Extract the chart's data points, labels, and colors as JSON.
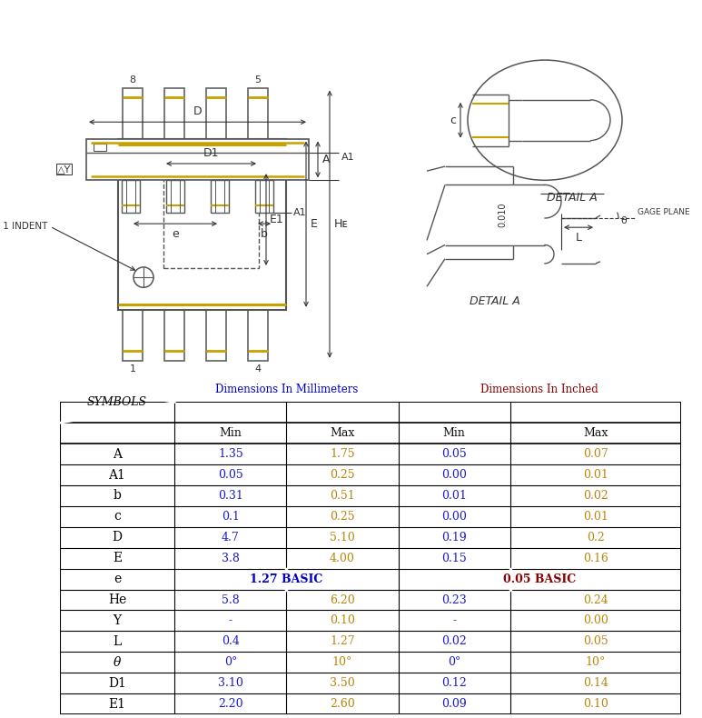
{
  "table": {
    "symbols": [
      "A",
      "A1",
      "b",
      "c",
      "D",
      "E",
      "e",
      "He",
      "Y",
      "L",
      "θ",
      "D1",
      "E1"
    ],
    "mm_min": [
      "1.35",
      "0.05",
      "0.31",
      "0.1",
      "4.7",
      "3.8",
      "1.27 BASIC",
      "5.8",
      "-",
      "0.4",
      "0°",
      "3.10",
      "2.20"
    ],
    "mm_max": [
      "1.75",
      "0.25",
      "0.51",
      "0.25",
      "5.10",
      "4.00",
      "1.27 BASIC",
      "6.20",
      "0.10",
      "1.27",
      "10°",
      "3.50",
      "2.60"
    ],
    "in_min": [
      "0.05",
      "0.00",
      "0.01",
      "0.00",
      "0.19",
      "0.15",
      "0.05 BASIC",
      "0.23",
      "-",
      "0.02",
      "0°",
      "0.12",
      "0.09"
    ],
    "in_max": [
      "0.07",
      "0.01",
      "0.02",
      "0.01",
      "0.2",
      "0.16",
      "0.05 BASIC",
      "0.24",
      "0.00",
      "0.05",
      "10°",
      "0.14",
      "0.10"
    ]
  },
  "colors": {
    "background": "#ffffff",
    "table_border": "#000000",
    "symbol_text": "#000000",
    "dim_mm_header": "#0000cd",
    "dim_in_header": "#8b0000",
    "data_min": "#1a1acd",
    "data_max": "#b8860b",
    "diagram_line": "#555555",
    "gold_line": "#c8a000"
  },
  "e_row_index": 6
}
